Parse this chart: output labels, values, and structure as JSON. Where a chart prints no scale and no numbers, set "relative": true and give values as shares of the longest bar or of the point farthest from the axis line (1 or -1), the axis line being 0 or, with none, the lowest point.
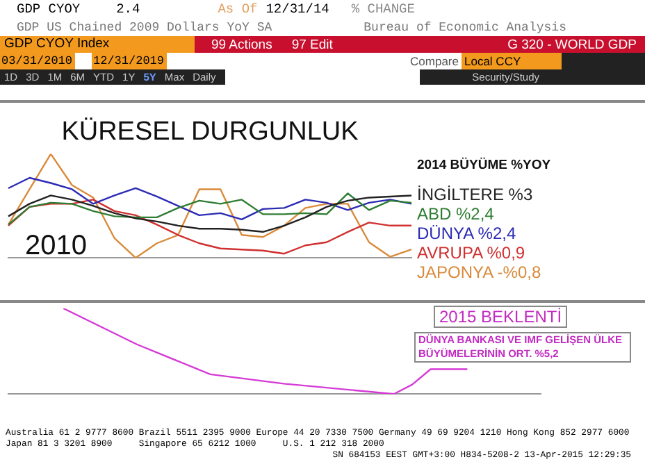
{
  "chart_data": [
    {
      "type": "other",
      "annotations": [
        "GDP CYOY",
        "2.4",
        "As Of",
        "12/31/14",
        "% CHANGE",
        "GDP US Chained 2009 Dollars YoY SA",
        "Bureau of Economic Analysis",
        "GDP CYOY Index",
        "99 Actions",
        "97 Edit",
        "G 320 - WORLD GDP",
        "03/31/2010",
        "12/31/2019",
        "Compare",
        "Local CCY",
        "1D",
        "3D",
        "1M",
        "6M",
        "YTD",
        "1Y",
        "5Y",
        "Max",
        "Daily",
        "Security/Study"
      ]
    },
    {
      "type": "line",
      "title": "KÜRESEL DURGUNLUK",
      "legend_title": "2014 BÜYÜME %YOY",
      "relative": true,
      "legend": false,
      "grid": false,
      "marker": "none",
      "annotations": [
        "2010"
      ],
      "categories": [
        null,
        null,
        null,
        null,
        null,
        null,
        null,
        null,
        null,
        null,
        null,
        null,
        null,
        null,
        null,
        null,
        null,
        null,
        null,
        null
      ],
      "series": [
        {
          "name": "İNGİLTERE %3",
          "color": "#222222",
          "values": [
            0.4,
            0.52,
            0.6,
            0.56,
            0.5,
            0.43,
            0.38,
            0.35,
            0.31,
            0.28,
            0.28,
            0.27,
            0.25,
            0.31,
            0.39,
            0.49,
            0.55,
            0.58,
            0.59,
            0.6
          ]
        },
        {
          "name": "ABD %2,4",
          "color": "#2e7d32",
          "values": [
            0.32,
            0.49,
            0.53,
            0.52,
            0.45,
            0.4,
            0.39,
            0.39,
            0.48,
            0.55,
            0.52,
            0.56,
            0.42,
            0.42,
            0.43,
            0.42,
            0.62,
            0.46,
            0.55,
            0.53
          ]
        },
        {
          "name": "DÜNYA %2,4",
          "color": "#2b2bb5",
          "values": [
            0.67,
            0.77,
            0.72,
            0.66,
            0.52,
            0.6,
            0.67,
            0.59,
            0.5,
            0.41,
            0.43,
            0.37,
            0.47,
            0.48,
            0.56,
            0.53,
            0.46,
            0.53,
            0.56,
            0.52
          ]
        },
        {
          "name": "AVRUPA %0,9",
          "color": "#d03030",
          "values": [
            0.31,
            0.49,
            0.52,
            0.52,
            0.56,
            0.45,
            0.41,
            0.32,
            0.22,
            0.14,
            0.09,
            0.08,
            0.07,
            0.04,
            0.12,
            0.15,
            0.25,
            0.34,
            0.31,
            0.31
          ]
        },
        {
          "name": "JAPONYA -%0,8",
          "color": "#d98a3a",
          "values": [
            0.32,
            0.66,
            1,
            0.7,
            0.58,
            0.19,
            0,
            0.14,
            0.22,
            0.66,
            0.66,
            0.22,
            0.2,
            0.31,
            0.48,
            0.52,
            0.52,
            0.15,
            0.01,
            0.08
          ]
        }
      ]
    },
    {
      "type": "line",
      "relative": true,
      "legend": false,
      "grid": false,
      "marker": "none",
      "annotations": [
        "2015 BEKLENTİ",
        "DÜNYA BANKASI VE IMF GELİŞEN ÜLKE BÜYÜMELERİNİN ORT. %5,2",
        "Australia 61 2 9777 8600 Brazil 5511 2395 9000 Europe 44 20 7330 7500 Germany 49 69 9204 1210 Hong Kong 852 2977 6000",
        "Japan 81 3 3201 8900     Singapore 65 6212 1000     U.S. 1 212 318 2000",
        "SN 684153 EEST GMT+3:00 H834-5208-2 13-Apr-2015 12:29:35"
      ],
      "categories": [
        null,
        null,
        null,
        null,
        null,
        null,
        null,
        null,
        null,
        null,
        null,
        null,
        null,
        null,
        null,
        null,
        null,
        null,
        null,
        null,
        null,
        null,
        null,
        null,
        null,
        null,
        null,
        null,
        null,
        null
      ],
      "series": [
        {
          "color": "#d63ad6",
          "values": [
            null,
            null,
            null,
            1,
            null,
            null,
            null,
            0.58,
            null,
            null,
            null,
            0.23,
            null,
            null,
            null,
            0.12,
            null,
            null,
            null,
            0.04,
            null,
            0,
            0.11,
            0.29,
            null,
            0.29,
            null,
            null,
            null,
            null
          ]
        }
      ]
    }
  ]
}
